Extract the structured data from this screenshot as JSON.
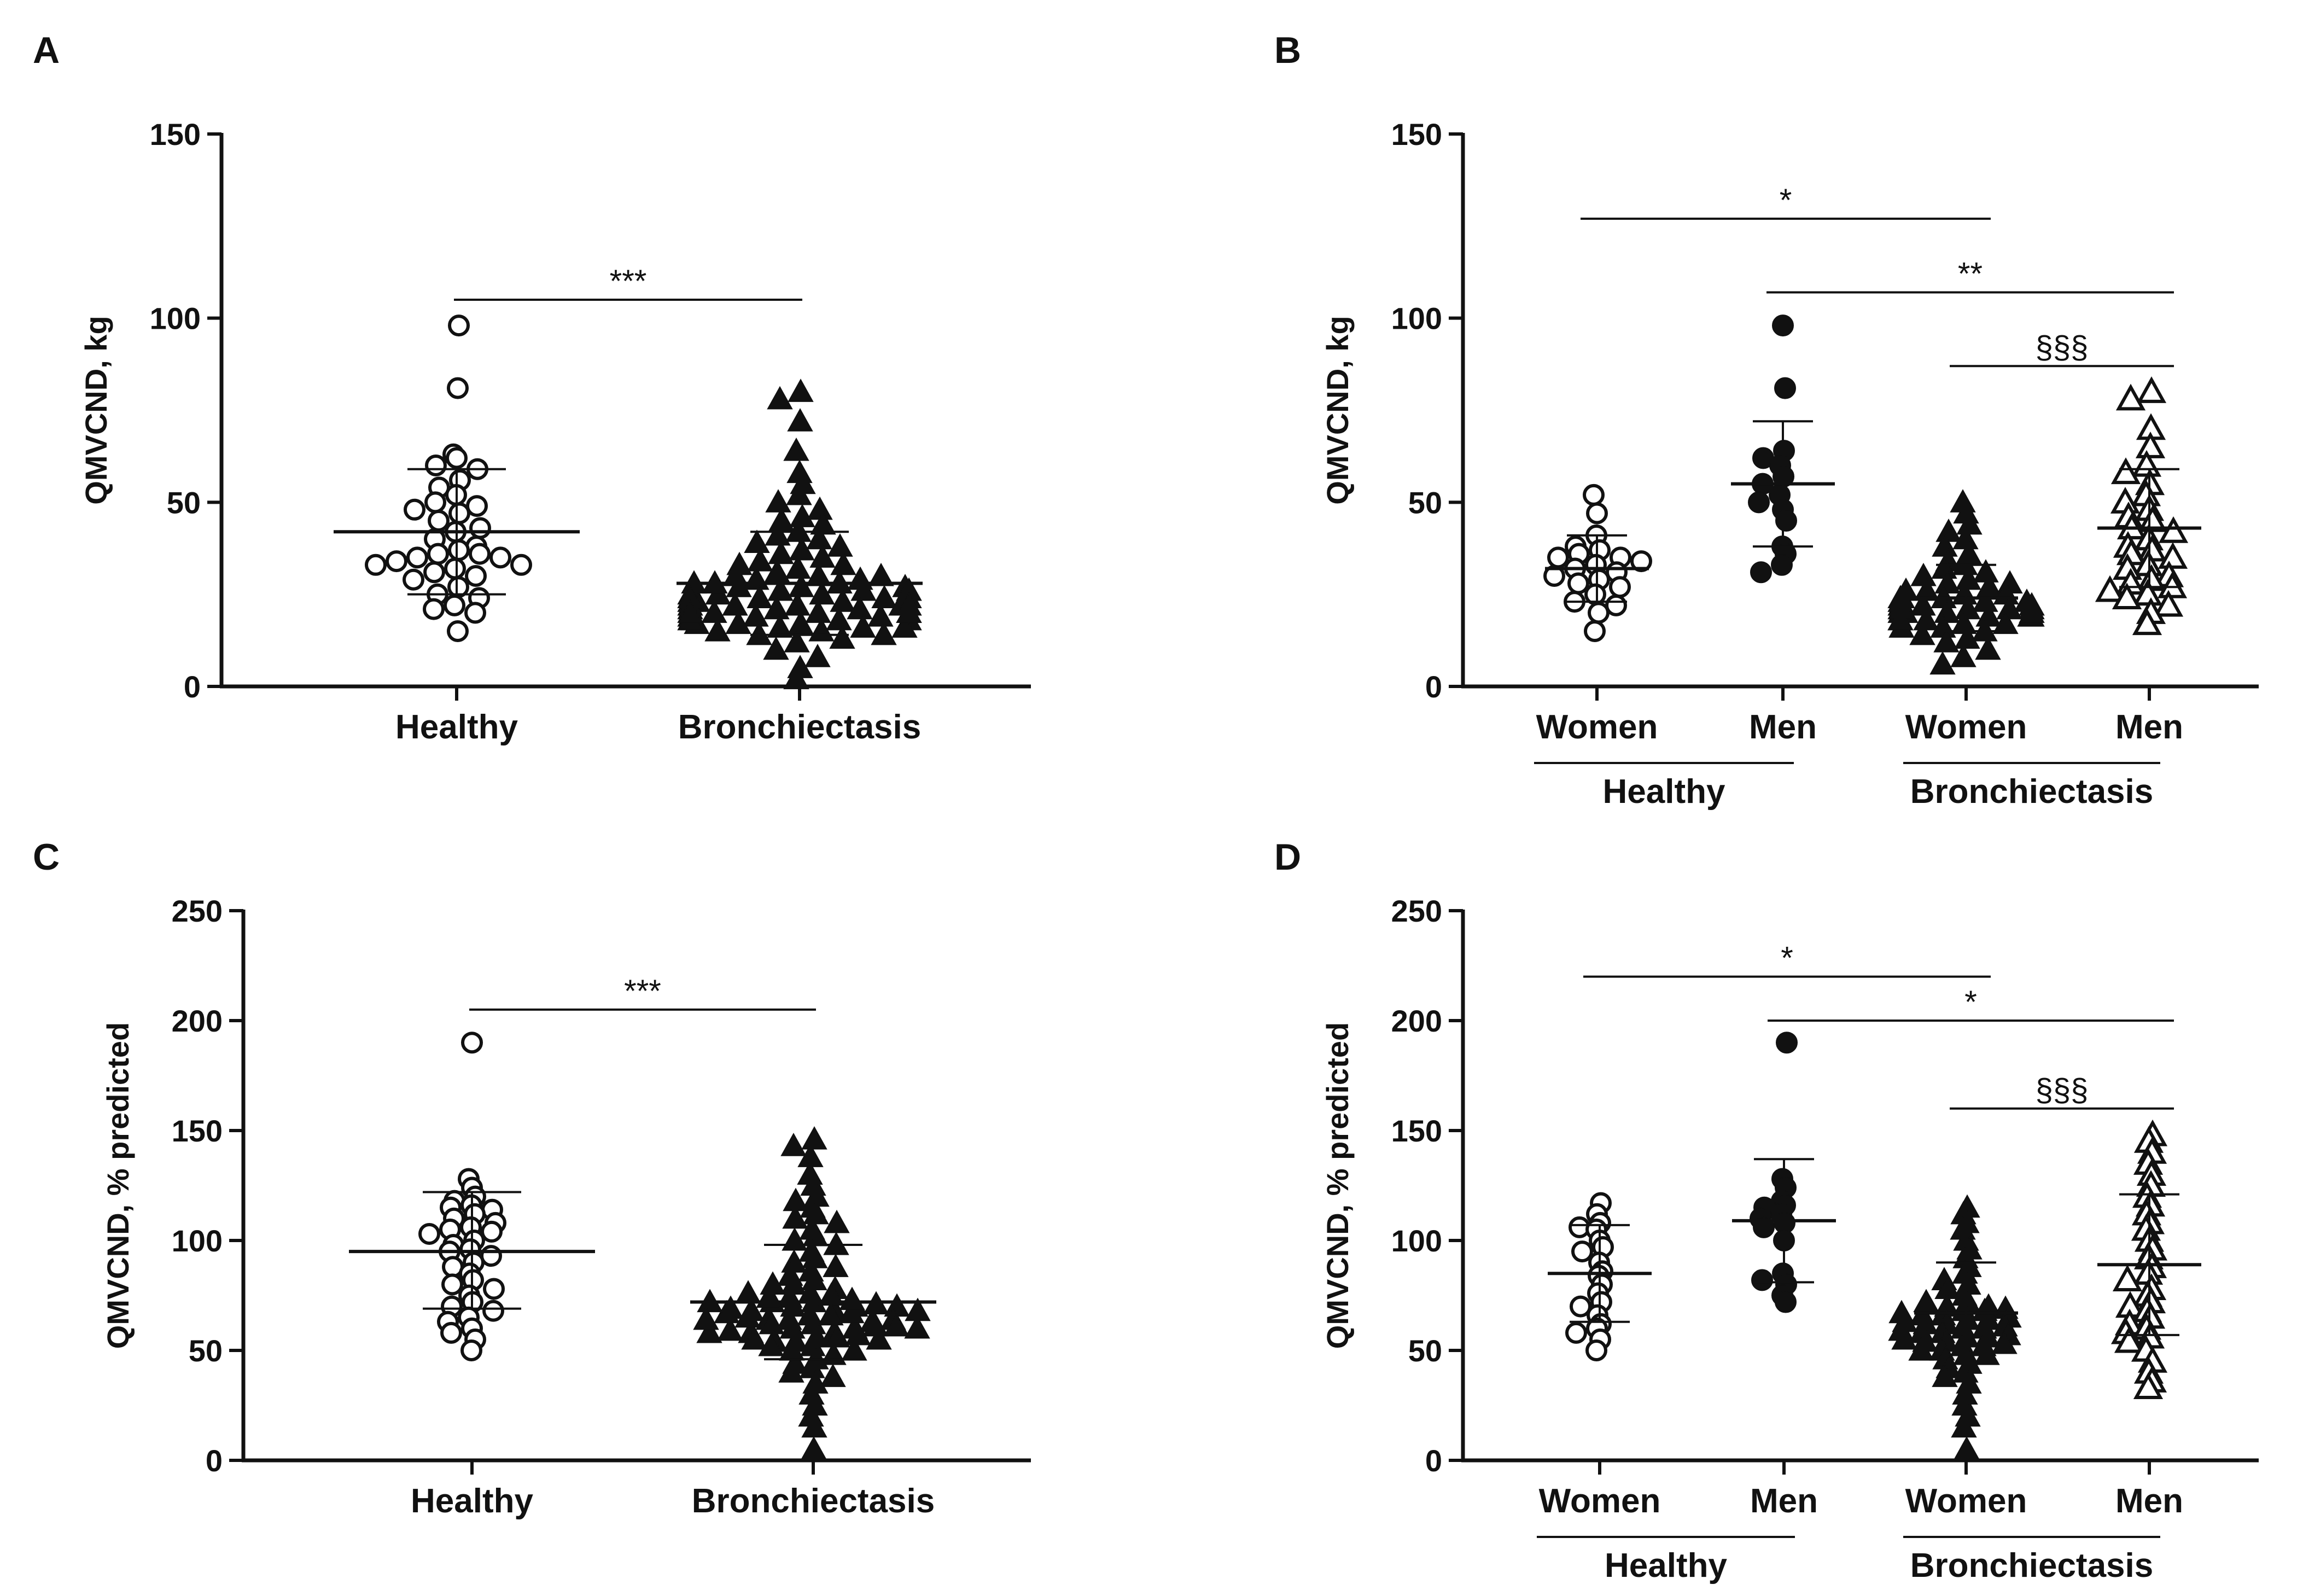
{
  "chart_data": [
    {
      "panel": "A",
      "type": "scatter",
      "title": "",
      "ylabel": "QMVCND, kg",
      "ylim": [
        0,
        150
      ],
      "yticks": [
        0,
        50,
        100,
        150
      ],
      "categories": [
        "Healthy",
        "Bronchiectasis"
      ],
      "groups": [],
      "series": [
        {
          "name": "Healthy",
          "marker": "open-circle",
          "mean": 42,
          "sd_low": 25,
          "sd_high": 59,
          "values": [
            98,
            81,
            63,
            62,
            60,
            59,
            56,
            54,
            52,
            50,
            49,
            48,
            47,
            45,
            43,
            42,
            40,
            38,
            37,
            36,
            36,
            35,
            35,
            34,
            33,
            33,
            32,
            31,
            30,
            29,
            27,
            25,
            24,
            22,
            21,
            20,
            15
          ]
        },
        {
          "name": "Bronchiectasis",
          "marker": "filled-triangle",
          "mean": 28,
          "sd_low": 14,
          "sd_high": 42,
          "values": [
            80,
            78,
            72,
            64,
            58,
            55,
            52,
            50,
            48,
            46,
            45,
            44,
            42,
            41,
            40,
            39,
            38,
            37,
            36,
            35,
            34,
            33,
            32,
            31,
            30,
            29,
            28,
            27,
            26,
            25,
            24,
            23,
            22,
            21,
            20,
            19,
            18,
            17,
            16,
            15,
            14,
            13,
            12,
            10,
            8,
            5,
            2,
            33,
            30,
            29,
            27,
            26,
            25,
            24,
            23,
            22,
            21,
            20,
            19,
            18,
            17,
            16,
            15,
            14,
            28,
            27,
            25,
            24,
            23,
            22,
            21,
            20,
            19,
            18,
            17,
            16,
            26,
            24,
            22,
            20,
            18,
            30,
            28,
            26,
            24,
            22,
            20
          ]
        }
      ],
      "comparisons": [
        {
          "from": "Healthy",
          "to": "Bronchiectasis",
          "label": "***",
          "y": 105
        }
      ]
    },
    {
      "panel": "B",
      "type": "scatter",
      "title": "",
      "ylabel": "QMVCND, kg",
      "ylim": [
        0,
        150
      ],
      "yticks": [
        0,
        50,
        100,
        150
      ],
      "categories": [
        "Women",
        "Men",
        "Women",
        "Men"
      ],
      "groups": [
        {
          "label": "Healthy",
          "span": [
            0,
            1
          ]
        },
        {
          "label": "Bronchiectasis",
          "span": [
            2,
            3
          ]
        }
      ],
      "series": [
        {
          "name": "Healthy Women",
          "marker": "open-circle",
          "mean": 32,
          "sd_low": 23,
          "sd_high": 41,
          "values": [
            52,
            47,
            41,
            38,
            37,
            36,
            35,
            35,
            34,
            33,
            32,
            31,
            30,
            29,
            28,
            27,
            25,
            23,
            22,
            20,
            15
          ]
        },
        {
          "name": "Healthy Men",
          "marker": "filled-circle",
          "mean": 55,
          "sd_low": 38,
          "sd_high": 72,
          "values": [
            98,
            81,
            64,
            62,
            60,
            57,
            55,
            52,
            50,
            48,
            45,
            38,
            36,
            33,
            31
          ]
        },
        {
          "name": "Bronchiectasis Women",
          "marker": "filled-triangle",
          "mean": 24,
          "sd_low": 15,
          "sd_high": 33,
          "values": [
            50,
            47,
            44,
            42,
            40,
            38,
            36,
            34,
            33,
            32,
            31,
            30,
            29,
            28,
            27,
            26,
            25,
            24,
            23,
            22,
            21,
            20,
            19,
            18,
            17,
            16,
            15,
            14,
            13,
            12,
            10,
            8,
            6,
            28,
            26,
            25,
            24,
            23,
            22,
            21,
            20,
            19,
            18,
            17,
            16,
            22,
            21,
            20,
            19,
            23,
            22,
            21,
            24,
            20,
            18
          ]
        },
        {
          "name": "Bronchiectasis Men",
          "marker": "open-triangle",
          "mean": 43,
          "sd_low": 27,
          "sd_high": 59,
          "values": [
            80,
            78,
            70,
            65,
            60,
            58,
            55,
            52,
            50,
            48,
            46,
            45,
            43,
            42,
            40,
            38,
            37,
            36,
            35,
            33,
            32,
            30,
            29,
            28,
            27,
            26,
            25,
            24,
            22,
            20,
            17
          ]
        }
      ],
      "comparisons": [
        {
          "from": 0,
          "to": 2,
          "label": "*",
          "y": 127
        },
        {
          "from": 1,
          "to": 3,
          "label": "**",
          "y": 107
        },
        {
          "from": 2,
          "to": 3,
          "label": "§§§",
          "y": 87
        }
      ]
    },
    {
      "panel": "C",
      "type": "scatter",
      "title": "",
      "ylabel": "QMVCND, % predicted",
      "ylim": [
        0,
        250
      ],
      "yticks": [
        0,
        50,
        100,
        150,
        200,
        250
      ],
      "categories": [
        "Healthy",
        "Bronchiectasis"
      ],
      "groups": [],
      "series": [
        {
          "name": "Healthy",
          "marker": "open-circle",
          "mean": 95,
          "sd_low": 69,
          "sd_high": 122,
          "values": [
            190,
            128,
            124,
            120,
            118,
            116,
            115,
            114,
            112,
            110,
            108,
            106,
            105,
            104,
            103,
            100,
            98,
            96,
            95,
            93,
            90,
            88,
            85,
            82,
            80,
            78,
            75,
            72,
            70,
            68,
            65,
            63,
            60,
            58,
            55,
            50
          ]
        },
        {
          "name": "Bronchiectasis",
          "marker": "filled-triangle",
          "mean": 72,
          "sd_low": 46,
          "sd_high": 98,
          "values": [
            146,
            143,
            138,
            130,
            125,
            120,
            118,
            115,
            112,
            110,
            108,
            105,
            102,
            100,
            98,
            95,
            92,
            90,
            88,
            86,
            84,
            82,
            80,
            78,
            76,
            74,
            72,
            70,
            68,
            66,
            64,
            62,
            60,
            58,
            56,
            54,
            52,
            50,
            48,
            46,
            44,
            42,
            40,
            38,
            35,
            30,
            25,
            20,
            15,
            5,
            75,
            72,
            70,
            68,
            66,
            64,
            62,
            60,
            58,
            56,
            54,
            52,
            50,
            74,
            71,
            69,
            67,
            65,
            63,
            61,
            59,
            57,
            55,
            73,
            70,
            67,
            64,
            61,
            58,
            55,
            80,
            76,
            72,
            68,
            64,
            60
          ]
        }
      ],
      "comparisons": [
        {
          "from": "Healthy",
          "to": "Bronchiectasis",
          "label": "***",
          "y": 205
        }
      ]
    },
    {
      "panel": "D",
      "type": "scatter",
      "title": "",
      "ylabel": "QMVCND, % predicted",
      "ylim": [
        0,
        250
      ],
      "yticks": [
        0,
        50,
        100,
        150,
        200,
        250
      ],
      "categories": [
        "Women",
        "Men",
        "Women",
        "Men"
      ],
      "groups": [
        {
          "label": "Healthy",
          "span": [
            0,
            1
          ]
        },
        {
          "label": "Bronchiectasis",
          "span": [
            2,
            3
          ]
        }
      ],
      "series": [
        {
          "name": "Healthy Women",
          "marker": "open-circle",
          "mean": 85,
          "sd_low": 63,
          "sd_high": 107,
          "values": [
            117,
            112,
            108,
            106,
            105,
            100,
            97,
            95,
            90,
            86,
            84,
            80,
            76,
            72,
            70,
            66,
            62,
            60,
            58,
            55,
            50
          ]
        },
        {
          "name": "Healthy Men",
          "marker": "filled-circle",
          "mean": 109,
          "sd_low": 81,
          "sd_high": 137,
          "values": [
            190,
            128,
            124,
            118,
            116,
            115,
            112,
            110,
            108,
            106,
            100,
            85,
            82,
            80,
            75,
            72
          ]
        },
        {
          "name": "Bronchiectasis Women",
          "marker": "filled-triangle",
          "mean": 67,
          "sd_low": 44,
          "sd_high": 90,
          "values": [
            115,
            112,
            108,
            105,
            100,
            96,
            92,
            88,
            85,
            82,
            80,
            78,
            75,
            72,
            70,
            68,
            66,
            64,
            62,
            60,
            58,
            56,
            54,
            52,
            50,
            48,
            46,
            44,
            42,
            40,
            38,
            35,
            30,
            25,
            20,
            15,
            5,
            70,
            68,
            66,
            64,
            62,
            60,
            58,
            56,
            54,
            52,
            50,
            48,
            72,
            69,
            67,
            65,
            63,
            61,
            59,
            57,
            55,
            53
          ]
        },
        {
          "name": "Bronchiectasis Men",
          "marker": "open-triangle",
          "mean": 89,
          "sd_low": 57,
          "sd_high": 121,
          "values": [
            148,
            145,
            140,
            135,
            130,
            125,
            120,
            116,
            112,
            108,
            105,
            100,
            96,
            92,
            88,
            85,
            82,
            78,
            75,
            72,
            70,
            68,
            65,
            62,
            60,
            58,
            56,
            54,
            50,
            45,
            40,
            36,
            33
          ]
        }
      ],
      "comparisons": [
        {
          "from": 0,
          "to": 2,
          "label": "*",
          "y": 220
        },
        {
          "from": 1,
          "to": 3,
          "label": "*",
          "y": 200
        },
        {
          "from": 2,
          "to": 3,
          "label": "§§§",
          "y": 160
        }
      ]
    }
  ]
}
